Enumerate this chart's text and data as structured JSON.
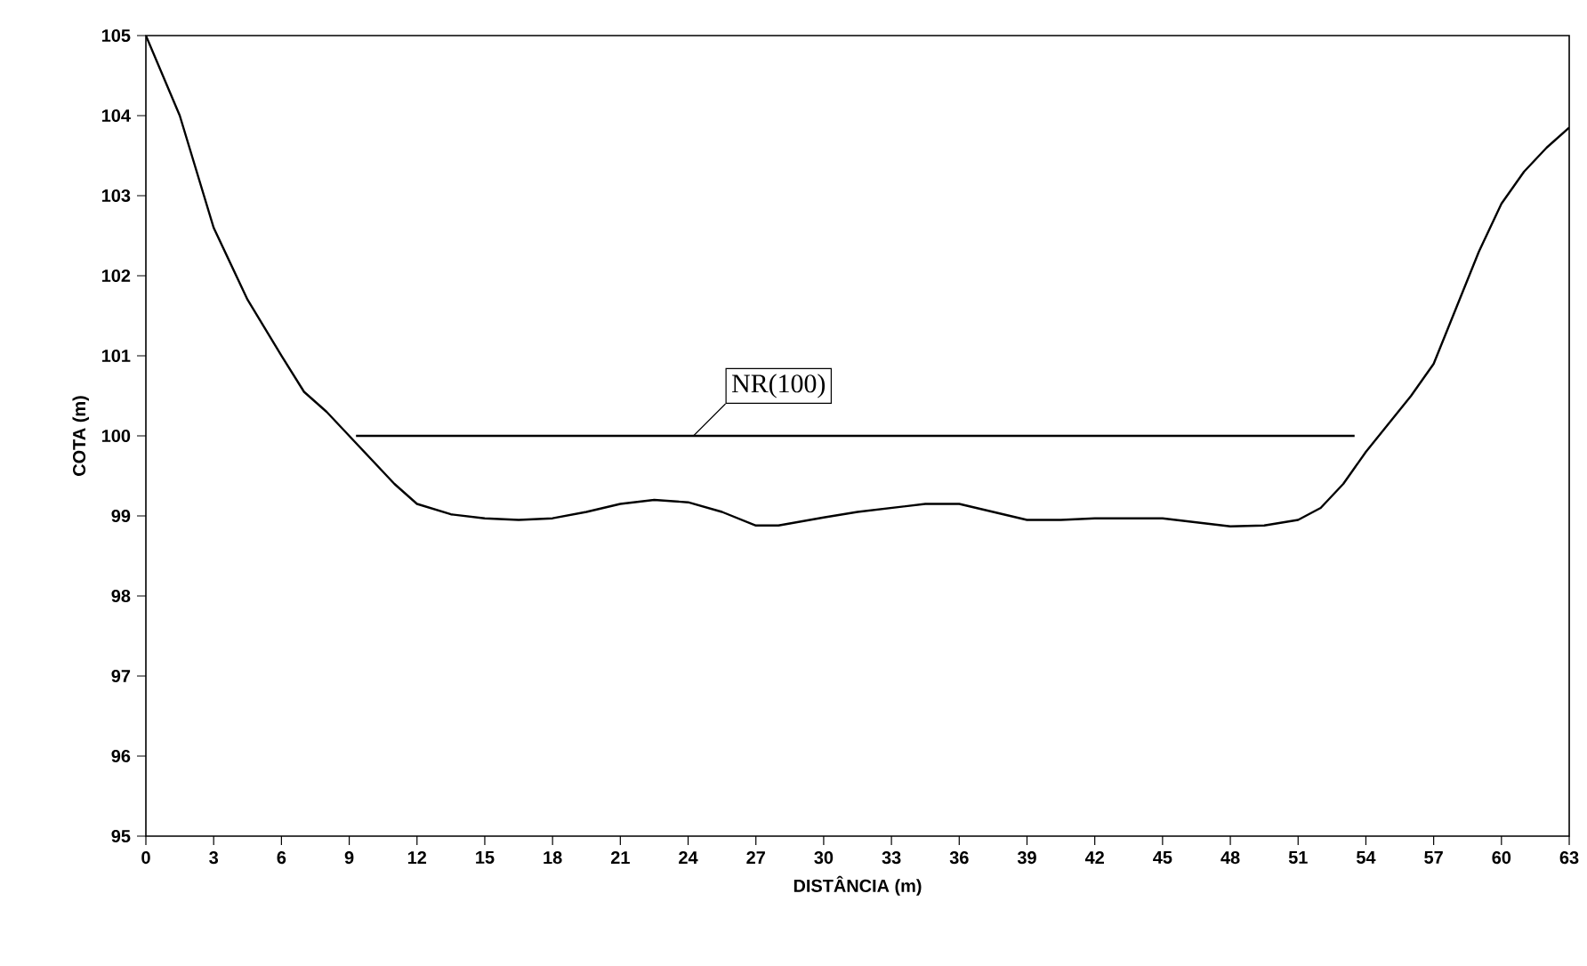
{
  "chart_data": {
    "type": "line",
    "xlabel": "DISTÂNCIA (m)",
    "ylabel": "COTA (m)",
    "xlim": [
      0,
      63
    ],
    "ylim": [
      95,
      105
    ],
    "xticks": [
      0,
      3,
      6,
      9,
      12,
      15,
      18,
      21,
      24,
      27,
      30,
      33,
      36,
      39,
      42,
      45,
      48,
      51,
      54,
      57,
      60,
      63
    ],
    "yticks": [
      95,
      96,
      97,
      98,
      99,
      100,
      101,
      102,
      103,
      104,
      105
    ],
    "grid": false,
    "legend": false,
    "marker": "none",
    "line_style": "solid",
    "series": [
      {
        "color": "#000000",
        "x": [
          0,
          1.5,
          3,
          4.5,
          6,
          7,
          8,
          9,
          10,
          11,
          12,
          13.5,
          15,
          16.5,
          18,
          19.5,
          21,
          22.5,
          24,
          25.5,
          27,
          28,
          30,
          31.5,
          33,
          34.5,
          36,
          37.5,
          39,
          40.5,
          42,
          45,
          46.5,
          48,
          49.5,
          51,
          52,
          53,
          54,
          55,
          56,
          57,
          58,
          59,
          60,
          61,
          62,
          63
        ],
        "values": [
          105,
          104,
          102.6,
          101.7,
          101.0,
          100.55,
          100.3,
          100.0,
          99.7,
          99.4,
          99.15,
          99.02,
          98.97,
          98.95,
          98.97,
          99.05,
          99.15,
          99.2,
          99.17,
          99.05,
          98.88,
          98.88,
          98.98,
          99.05,
          99.1,
          99.15,
          99.15,
          99.05,
          98.95,
          98.95,
          98.97,
          98.97,
          98.92,
          98.87,
          98.88,
          98.95,
          99.1,
          99.4,
          99.8,
          100.15,
          100.5,
          100.9,
          101.6,
          102.3,
          102.9,
          103.3,
          103.6,
          103.85
        ]
      },
      {
        "name": "NR(100)",
        "color": "#000000",
        "x": [
          9.3,
          53.5
        ],
        "values": [
          100,
          100
        ]
      }
    ]
  }
}
